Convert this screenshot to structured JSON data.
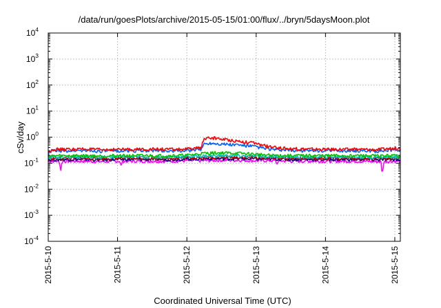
{
  "chart_data": {
    "type": "line",
    "title": "/data/run/goesPlots/archive/2015-05-15/01:00/flux/../bryn/5daysMoon.plot",
    "xlabel": "Coordinated Universal Time (UTC)",
    "ylabel": "cSv/day",
    "yscale": "log",
    "ylim": [
      0.0001,
      10000
    ],
    "xlim": [
      0,
      5.08
    ],
    "grid": true,
    "y_ticks": [
      {
        "base": "10",
        "exp": "-4",
        "value": 0.0001
      },
      {
        "base": "10",
        "exp": "-3",
        "value": 0.001
      },
      {
        "base": "10",
        "exp": "-2",
        "value": 0.01
      },
      {
        "base": "10",
        "exp": "-1",
        "value": 0.1
      },
      {
        "base": "10",
        "exp": "0",
        "value": 1
      },
      {
        "base": "10",
        "exp": "1",
        "value": 10
      },
      {
        "base": "10",
        "exp": "2",
        "value": 100
      },
      {
        "base": "10",
        "exp": "3",
        "value": 1000
      },
      {
        "base": "10",
        "exp": "4",
        "value": 10000
      }
    ],
    "x_ticks": [
      {
        "label": "2015-5-10",
        "value": 0
      },
      {
        "label": "2015-5-11",
        "value": 1
      },
      {
        "label": "2015-5-12",
        "value": 2
      },
      {
        "label": "2015-5-13",
        "value": 3
      },
      {
        "label": "2015-5-14",
        "value": 4
      },
      {
        "label": "2015-5-15",
        "value": 5
      }
    ],
    "series": [
      {
        "color": "#ff00ff",
        "x": [
          0,
          0.25,
          0.5,
          0.75,
          1,
          1.25,
          1.5,
          1.75,
          2,
          2.25,
          2.5,
          2.75,
          3,
          3.25,
          3.5,
          3.75,
          4,
          4.25,
          4.5,
          4.75,
          5,
          5.08
        ],
        "y": [
          0.12,
          0.12,
          0.12,
          0.115,
          0.12,
          0.12,
          0.12,
          0.12,
          0.125,
          0.125,
          0.13,
          0.13,
          0.125,
          0.125,
          0.12,
          0.12,
          0.12,
          0.12,
          0.12,
          0.115,
          0.12,
          0.12
        ],
        "dips": [
          {
            "x": 0.18,
            "y": 0.05
          },
          {
            "x": 4.82,
            "y": 0.035
          },
          {
            "x": 1.05,
            "y": 0.08
          },
          {
            "x": 3.3,
            "y": 0.09
          }
        ]
      },
      {
        "color": "#000080",
        "x": [
          0,
          0.25,
          0.5,
          0.75,
          1,
          1.25,
          1.5,
          1.75,
          2,
          2.25,
          2.5,
          2.75,
          3,
          3.25,
          3.5,
          3.75,
          4,
          4.25,
          4.5,
          4.75,
          5,
          5.08
        ],
        "y": [
          0.135,
          0.14,
          0.14,
          0.135,
          0.14,
          0.14,
          0.14,
          0.14,
          0.145,
          0.15,
          0.15,
          0.15,
          0.145,
          0.145,
          0.14,
          0.14,
          0.14,
          0.14,
          0.14,
          0.135,
          0.14,
          0.14
        ]
      },
      {
        "color": "#c00000",
        "x": [
          0,
          0.25,
          0.5,
          0.75,
          1,
          1.25,
          1.5,
          1.75,
          2,
          2.25,
          2.5,
          2.75,
          3,
          3.25,
          3.5,
          3.75,
          4,
          4.25,
          4.5,
          4.75,
          5,
          5.08
        ],
        "y": [
          0.15,
          0.155,
          0.155,
          0.15,
          0.155,
          0.155,
          0.155,
          0.155,
          0.16,
          0.165,
          0.17,
          0.17,
          0.165,
          0.16,
          0.155,
          0.155,
          0.155,
          0.155,
          0.155,
          0.15,
          0.155,
          0.155
        ]
      },
      {
        "color": "#00c0c0",
        "x": [
          0,
          0.25,
          0.5,
          0.75,
          1,
          1.25,
          1.5,
          1.75,
          2,
          2.25,
          2.5,
          2.75,
          3,
          3.25,
          3.5,
          3.75,
          4,
          4.25,
          4.5,
          4.75,
          5,
          5.08
        ],
        "y": [
          0.17,
          0.175,
          0.175,
          0.17,
          0.175,
          0.175,
          0.175,
          0.175,
          0.18,
          0.19,
          0.195,
          0.19,
          0.185,
          0.18,
          0.175,
          0.175,
          0.175,
          0.175,
          0.175,
          0.17,
          0.175,
          0.175
        ]
      },
      {
        "color": "#00c000",
        "x": [
          0,
          0.25,
          0.5,
          0.75,
          1,
          1.25,
          1.5,
          1.75,
          2,
          2.25,
          2.5,
          2.75,
          3,
          3.25,
          3.5,
          3.75,
          4,
          4.25,
          4.5,
          4.75,
          5,
          5.08
        ],
        "y": [
          0.19,
          0.195,
          0.195,
          0.19,
          0.195,
          0.195,
          0.195,
          0.195,
          0.2,
          0.24,
          0.25,
          0.24,
          0.22,
          0.2,
          0.195,
          0.195,
          0.195,
          0.195,
          0.195,
          0.19,
          0.195,
          0.195
        ]
      },
      {
        "color": "#0060ff",
        "x": [
          0,
          0.05,
          0.25,
          0.5,
          0.75,
          1,
          1.25,
          1.5,
          1.75,
          1.95,
          2.1,
          2.2,
          2.25,
          2.35,
          2.5,
          2.75,
          2.95,
          3.05,
          3.25,
          3.5,
          3.75,
          4,
          4.25,
          4.5,
          4.75,
          5,
          5.08
        ],
        "y": [
          0.22,
          0.3,
          0.3,
          0.31,
          0.29,
          0.3,
          0.3,
          0.31,
          0.3,
          0.3,
          0.32,
          0.34,
          0.55,
          0.6,
          0.55,
          0.5,
          0.45,
          0.4,
          0.33,
          0.31,
          0.3,
          0.3,
          0.3,
          0.3,
          0.29,
          0.33,
          0.3
        ]
      },
      {
        "color": "#ff0000",
        "x": [
          0,
          0.05,
          0.25,
          0.5,
          0.75,
          1,
          1.25,
          1.5,
          1.75,
          1.95,
          2.1,
          2.2,
          2.25,
          2.35,
          2.5,
          2.75,
          2.95,
          3.05,
          3.25,
          3.5,
          3.75,
          4,
          4.25,
          4.5,
          4.75,
          5,
          5.08
        ],
        "y": [
          0.25,
          0.34,
          0.34,
          0.35,
          0.33,
          0.34,
          0.34,
          0.35,
          0.34,
          0.34,
          0.36,
          0.4,
          0.85,
          0.95,
          0.85,
          0.7,
          0.6,
          0.52,
          0.4,
          0.36,
          0.35,
          0.34,
          0.34,
          0.34,
          0.33,
          0.38,
          0.35
        ]
      }
    ]
  }
}
